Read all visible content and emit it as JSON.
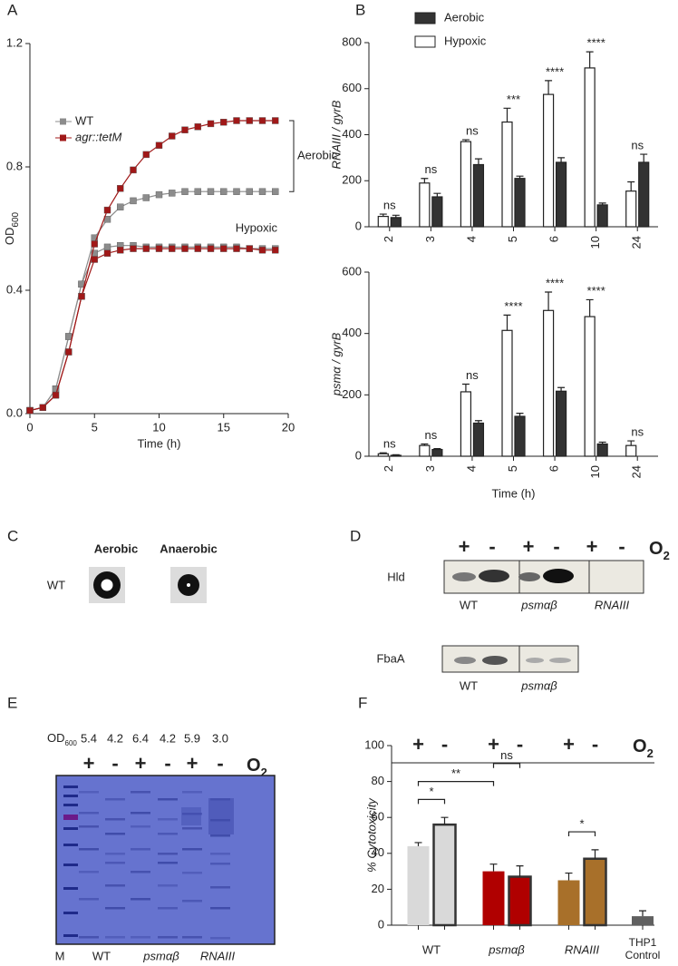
{
  "chart_data": [
    {
      "type": "line",
      "label": "A",
      "xlabel": "Time (h)",
      "ylabel": [
        "OD",
        "600"
      ],
      "x": [
        0,
        1,
        2,
        3,
        4,
        5,
        6,
        7,
        8,
        9,
        10,
        11,
        12,
        13,
        14,
        15,
        16,
        17,
        18,
        19
      ],
      "xlim": [
        0,
        20
      ],
      "ylim": [
        0,
        1.2
      ],
      "xticks": [
        0,
        5,
        10,
        15,
        20
      ],
      "yticks": [
        {
          "value": 0,
          "label": "0.0"
        },
        0.4,
        0.8,
        1.2
      ],
      "series": [
        {
          "name": "WT",
          "color": "#8c8c8c",
          "aerobic": [
            0.01,
            0.02,
            0.08,
            0.25,
            0.42,
            0.57,
            0.63,
            0.67,
            0.69,
            0.7,
            0.71,
            0.715,
            0.72,
            0.72,
            0.72,
            0.72,
            0.72,
            0.72,
            0.72,
            0.72
          ],
          "hypoxic": [
            0.01,
            0.02,
            0.08,
            0.25,
            0.42,
            0.52,
            0.54,
            0.545,
            0.545,
            0.54,
            0.54,
            0.54,
            0.54,
            0.54,
            0.54,
            0.54,
            0.54,
            0.535,
            0.535,
            0.535
          ]
        },
        {
          "name": "agr::tetM",
          "color": "#a01818",
          "aerobic": [
            0.01,
            0.02,
            0.06,
            0.2,
            0.38,
            0.55,
            0.66,
            0.73,
            0.79,
            0.84,
            0.87,
            0.9,
            0.92,
            0.93,
            0.94,
            0.945,
            0.95,
            0.95,
            0.95,
            0.95
          ],
          "hypoxic": [
            0.01,
            0.02,
            0.06,
            0.2,
            0.38,
            0.5,
            0.52,
            0.53,
            0.535,
            0.535,
            0.535,
            0.535,
            0.535,
            0.535,
            0.535,
            0.535,
            0.535,
            0.535,
            0.53,
            0.53
          ]
        }
      ],
      "annotations": [
        "Aerobic",
        "Hypoxic"
      ]
    },
    {
      "type": "bar",
      "label": "B",
      "ylabel": "RNAIII / gyrB",
      "categories": [
        "2",
        "3",
        "4",
        "5",
        "6",
        "10",
        "24"
      ],
      "ylim": [
        0,
        800
      ],
      "yticks": [
        0,
        200,
        400,
        600,
        800
      ],
      "series": [
        {
          "name": "Aerobic",
          "color": "#333333",
          "values": [
            40,
            130,
            270,
            210,
            280,
            95,
            280
          ],
          "errors": [
            10,
            15,
            25,
            10,
            20,
            8,
            35
          ]
        },
        {
          "name": "Hypoxic",
          "color": "#ffffff",
          "values": [
            45,
            190,
            370,
            455,
            575,
            690,
            155
          ],
          "errors": [
            10,
            20,
            8,
            60,
            60,
            70,
            40
          ]
        }
      ],
      "annotations": [
        "ns",
        "ns",
        "ns",
        "***",
        "****",
        "****",
        "ns"
      ]
    },
    {
      "type": "bar",
      "ylabel": "psmα / gyrB",
      "xlabel": "Time (h)",
      "categories": [
        "2",
        "3",
        "4",
        "5",
        "6",
        "10",
        "24"
      ],
      "ylim": [
        0,
        600
      ],
      "yticks": [
        0,
        200,
        400,
        600
      ],
      "series": [
        {
          "color": "#333333",
          "values": [
            3,
            22,
            108,
            130,
            212,
            40,
            null
          ],
          "errors": [
            2,
            3,
            8,
            10,
            12,
            6,
            null
          ]
        },
        {
          "color": "#ffffff",
          "values": [
            8,
            35,
            210,
            410,
            475,
            455,
            35
          ],
          "errors": [
            3,
            5,
            25,
            50,
            60,
            55,
            15
          ]
        }
      ],
      "annotations": [
        "ns",
        "ns",
        "ns",
        "****",
        "****",
        "****",
        "ns"
      ]
    },
    {
      "type": "bar",
      "label": "F",
      "ylabel": "% Cytotoxicity",
      "categories": [
        "+",
        "-",
        "+",
        "-",
        "+",
        "-",
        null
      ],
      "values": [
        44,
        56,
        30,
        27,
        25,
        37,
        5
      ],
      "errors": [
        2,
        4,
        4,
        6,
        4,
        5,
        3
      ],
      "colors": [
        "#d9d9d9",
        "#d9d9d9",
        "#b00000",
        "#b00000",
        "#a8702a",
        "#a8702a",
        "#606060"
      ],
      "groups": [
        "WT",
        "psmαβ",
        "RNAIII",
        "THP1 Control"
      ],
      "condition": [
        "O",
        "2"
      ],
      "ylim": [
        0,
        100
      ],
      "yticks": [
        0,
        20,
        40,
        60,
        80,
        100
      ],
      "annotations": [
        {
          "text": "*",
          "bars": [
            0,
            1
          ]
        },
        {
          "text": "**",
          "bars": [
            0,
            2
          ]
        },
        {
          "text": "ns",
          "bars": [
            2,
            3
          ]
        },
        {
          "text": "*",
          "bars": [
            4,
            5
          ]
        }
      ]
    }
  ],
  "panel_c": {
    "label": "C",
    "conditions": [
      "Aerobic",
      "Anaerobic"
    ],
    "strain": "WT"
  },
  "panel_d": {
    "label": "D",
    "oxygen": [
      "+",
      "-",
      "+",
      "-",
      "+",
      "-"
    ],
    "condition": [
      "O",
      "2"
    ],
    "blots": [
      {
        "protein": "Hld",
        "lanes": [
          "WT",
          "psmαβ",
          "RNAIII"
        ]
      },
      {
        "protein": "FbaA",
        "lanes": [
          "WT",
          "psmαβ"
        ]
      }
    ]
  },
  "panel_e": {
    "label": "E",
    "od_label": [
      "OD",
      "600"
    ],
    "od_values": [
      "5.4",
      "4.2",
      "6.4",
      "4.2",
      "5.9",
      "3.0"
    ],
    "oxygen": [
      "+",
      "-",
      "+",
      "-",
      "+",
      "-"
    ],
    "condition": [
      "O",
      "2"
    ],
    "lanes": [
      "M",
      "WT",
      "psmαβ",
      "RNAIII"
    ]
  }
}
